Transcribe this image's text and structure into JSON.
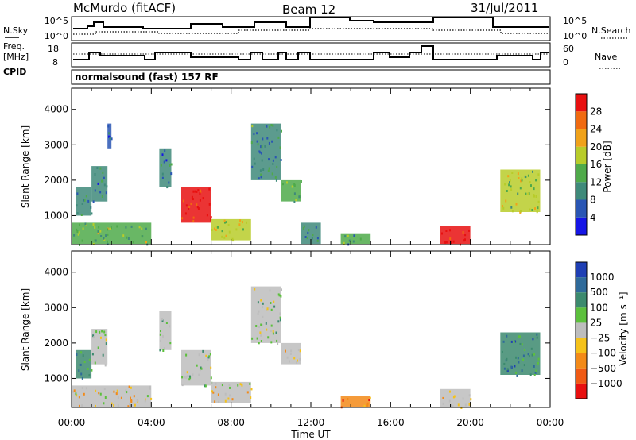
{
  "header": {
    "station": "McMurdo (fitACF)",
    "beam": "Beam 12",
    "date": "31/Jul/2011"
  },
  "top_panels": {
    "nsky_label": "N.Sky",
    "nsearch_label": "N.Search",
    "freq_label_line1": "Freq.",
    "freq_label_line2": "[MHz]",
    "nave_label": "Nave",
    "cpid_label": "CPID",
    "cpid_text": "normalsound (fast) 157 RF",
    "noise_ticks": [
      "10^5",
      "10^0"
    ],
    "freq_ticks": [
      "18",
      "8"
    ],
    "nave_ticks": [
      "60",
      "0"
    ]
  },
  "axes": {
    "ylabel": "Slant Range [km]",
    "xlabel": "Time UT",
    "yticks": [
      "1000",
      "2000",
      "3000",
      "4000"
    ],
    "xticks": [
      "00:00",
      "04:00",
      "08:00",
      "12:00",
      "16:00",
      "20:00",
      "00:00"
    ]
  },
  "power_colorbar": {
    "label": "Power [dB]",
    "ticks": [
      "4",
      "8",
      "12",
      "16",
      "20",
      "24",
      "28"
    ],
    "colors": [
      "#1515e6",
      "#2a56b4",
      "#3f8a7a",
      "#4faa4a",
      "#b8cc2a",
      "#f0a21a",
      "#f06a10",
      "#e81010"
    ]
  },
  "velocity_colorbar": {
    "label": "Velocity [m s⁻¹]",
    "ticks": [
      "1000",
      "500",
      "100",
      "25",
      "−25",
      "−100",
      "−500",
      "−1000"
    ],
    "colors": [
      "#1f3fb4",
      "#2f6a9a",
      "#3c8a6e",
      "#5cc03c",
      "#bdbdbd",
      "#f5c21a",
      "#f38a18",
      "#f05a14",
      "#e81010"
    ]
  },
  "chart_data": [
    {
      "type": "heatmap",
      "title": "Power",
      "xlabel": "Time UT",
      "ylabel": "Slant Range [km]",
      "xlim": [
        0,
        24
      ],
      "ylim": [
        180,
        4600
      ],
      "colorbar": "Power [dB]",
      "colorbar_range": [
        0,
        30
      ],
      "regions": [
        {
          "t": [
            0.0,
            4.0
          ],
          "r": [
            200,
            800
          ],
          "value": 14
        },
        {
          "t": [
            0.2,
            1.0
          ],
          "r": [
            1000,
            1800
          ],
          "value": 10
        },
        {
          "t": [
            1.0,
            1.8
          ],
          "r": [
            1400,
            2400
          ],
          "value": 8
        },
        {
          "t": [
            1.8,
            2.0
          ],
          "r": [
            2900,
            3600
          ],
          "value": 6
        },
        {
          "t": [
            4.4,
            5.0
          ],
          "r": [
            1800,
            2900
          ],
          "value": 8
        },
        {
          "t": [
            5.5,
            7.0
          ],
          "r": [
            800,
            1800
          ],
          "value": 28
        },
        {
          "t": [
            7.0,
            9.0
          ],
          "r": [
            300,
            900
          ],
          "value": 18
        },
        {
          "t": [
            9.0,
            10.5
          ],
          "r": [
            2000,
            3600
          ],
          "value": 10
        },
        {
          "t": [
            10.5,
            11.5
          ],
          "r": [
            1400,
            2000
          ],
          "value": 12
        },
        {
          "t": [
            11.5,
            12.5
          ],
          "r": [
            200,
            800
          ],
          "value": 10
        },
        {
          "t": [
            13.5,
            15.0
          ],
          "r": [
            200,
            500
          ],
          "value": 12
        },
        {
          "t": [
            18.5,
            20.0
          ],
          "r": [
            200,
            700
          ],
          "value": 28
        },
        {
          "t": [
            21.5,
            23.5
          ],
          "r": [
            1100,
            2300
          ],
          "value": 16
        }
      ]
    },
    {
      "type": "heatmap",
      "title": "Velocity",
      "xlabel": "Time UT",
      "ylabel": "Slant Range [km]",
      "xlim": [
        0,
        24
      ],
      "ylim": [
        180,
        4600
      ],
      "colorbar": "Velocity [m s⁻¹]",
      "colorbar_range": [
        -1000,
        1000
      ],
      "regions": [
        {
          "t": [
            0.0,
            4.0
          ],
          "r": [
            200,
            800
          ],
          "value": -100
        },
        {
          "t": [
            0.2,
            1.0
          ],
          "r": [
            1000,
            1800
          ],
          "value": 500
        },
        {
          "t": [
            1.0,
            1.8
          ],
          "r": [
            1400,
            2400
          ],
          "value": 100
        },
        {
          "t": [
            4.4,
            5.0
          ],
          "r": [
            1800,
            2900
          ],
          "value": 100
        },
        {
          "t": [
            5.5,
            7.0
          ],
          "r": [
            800,
            1800
          ],
          "value": 100
        },
        {
          "t": [
            7.0,
            9.0
          ],
          "r": [
            300,
            900
          ],
          "value": -100
        },
        {
          "t": [
            9.0,
            10.5
          ],
          "r": [
            2000,
            3600
          ],
          "value": 100
        },
        {
          "t": [
            10.5,
            11.5
          ],
          "r": [
            1400,
            2000
          ],
          "value": -100
        },
        {
          "t": [
            13.5,
            15.0
          ],
          "r": [
            200,
            500
          ],
          "value": -500
        },
        {
          "t": [
            18.5,
            20.0
          ],
          "r": [
            200,
            700
          ],
          "value": -100
        },
        {
          "t": [
            21.5,
            23.5
          ],
          "r": [
            1100,
            2300
          ],
          "value": 500
        }
      ]
    }
  ]
}
